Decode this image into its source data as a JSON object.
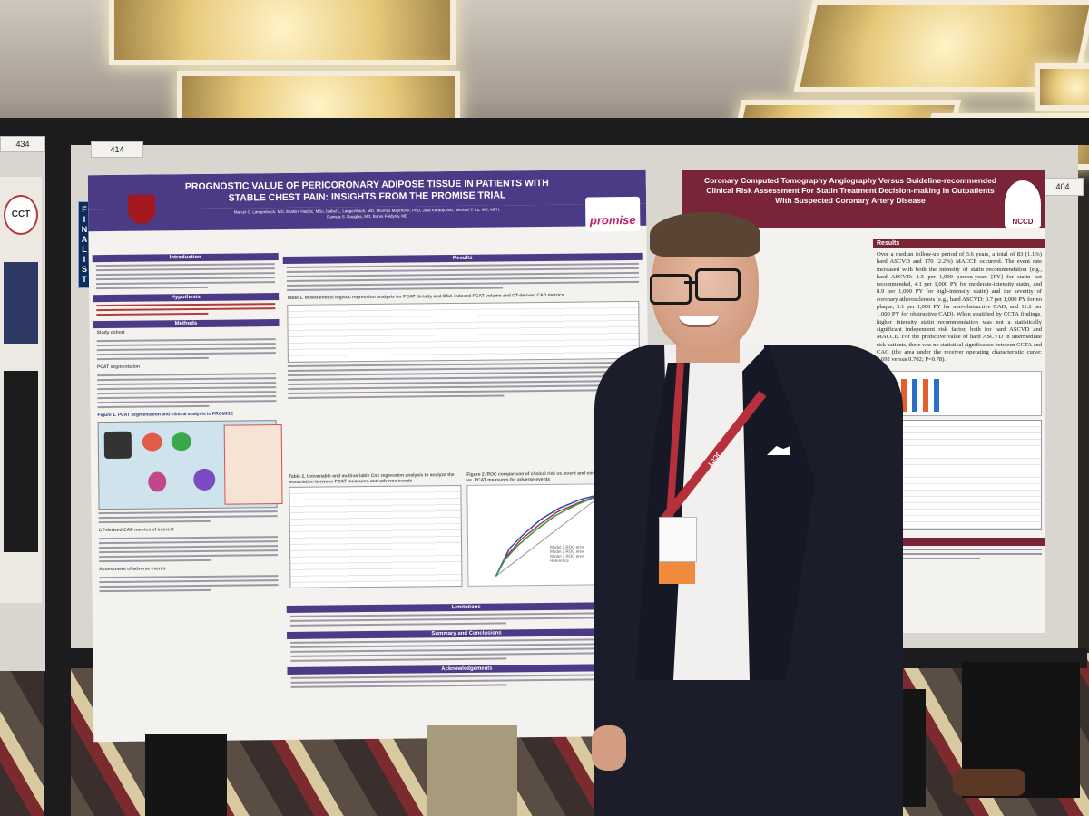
{
  "scene": {
    "description_tag": "conference-poster-session-photo",
    "colors": {
      "poster_left_header": "#4b3a86",
      "poster_right_header": "#7a2438",
      "jacket": "#1b1d2a",
      "lanyard": "#b5303a"
    }
  },
  "boards": {
    "far_left_number": "434",
    "center_number": "414",
    "right_number": "404",
    "far_left_logo_text": "CCT"
  },
  "ribbon": {
    "label": "FINALIST"
  },
  "poster_left": {
    "title_line1": "PROGNOSTIC VALUE OF PERICORONARY ADIPOSE TISSUE IN PATIENTS WITH",
    "title_line2": "STABLE CHEST PAIN: INSIGHTS FROM THE PROMISE TRIAL",
    "authors_line1": "Marcel C. Langenbach, MD, Ibrahim Hadzic, MSc, Isabel L. Langenbach, MD, Thomas Mayrhofer, PhD, Julia Karady, MD, Michael T. Lu, MD, MPH,",
    "authors_line2": "Pamela S. Douglas, MD, Borek Foldyna, MD",
    "promise_logo": "promise",
    "sections": {
      "introduction": "Introduction",
      "hypothesis": "Hypothesis",
      "methods": "Methods",
      "results": "Results",
      "limitations": "Limitations",
      "summary": "Summary and Conclusions",
      "acknowledgements": "Acknowledgements"
    },
    "subheads": {
      "study_cohort": "Study cohort",
      "pcat_segmentation": "PCAT segmentation",
      "ct_derived": "CT-derived CAD metrics of interest",
      "assessment": "Assessment of adverse events"
    },
    "table1_caption": "Table 1. Mixed-effects logistic regression analysis for PCAT density and BSA-indexed PCAT volume and CT-derived CAD metrics.",
    "table2_caption": "Table 2. Univariable and multivariable Cox regression analysis to analyze the association between PCAT measures and adverse events",
    "figure1_caption": "Figure 1. PCAT segmentation and clinical analysis in PROMISE",
    "figure2_caption": "Figure 2. ROC comparison of clinical risk vs. event and coronary plaque burden vs. PCAT measures for adverse events",
    "roc_legend": [
      "Model 1 ROC area",
      "Model 2 ROC area",
      "Model 3 ROC area",
      "Reference"
    ]
  },
  "poster_right": {
    "title_line1": "Coronary Computed Tomography Angiography Versus Guideline-recommended",
    "title_line2": "Clinical Risk Assessment For Statin Treatment Decision-making In Outpatients",
    "title_line3": "With Suspected Coronary Artery Disease",
    "logo_text": "NCCD",
    "results_head": "Results",
    "results_text": "Over a median follow-up period of 3.6 years, a total of 83 (1.1%) hard ASCVD and 170 (2.2%) MACCE occurred. The event rate increased with both the intensity of statin recommendation (e.g., hard ASCVD: 1.5 per 1,000 person-years [PY] for statin not recommended, 4.1 per 1,000 PY for moderate-intensity statin, and 8.9 per 1,000 PY for high-intensity statin) and the severity of coronary atherosclerosis (e.g., hard ASCVD: 0.7 per 1,000 PY for no plaque, 5.1 per 1,000 PY for non-obstructive CAD, and 11.2 per 1,000 PY for obstructive CAD). When stratified by CCTA findings, higher intensity statin recommendation was not a statistically significant independent risk factor, both for hard ASCVD and MACCE. For the predictive value of hard ASCVD in intermediate risk patients, there was no statistical significance between CCTA and CAC (the area under the receiver operating characteristic curve: 0.692 versus 0.702; P=0.78).",
    "conclusions_head": "sions"
  },
  "person": {
    "lanyard_text": "JCCT",
    "badge_color": "#f08a3c"
  }
}
